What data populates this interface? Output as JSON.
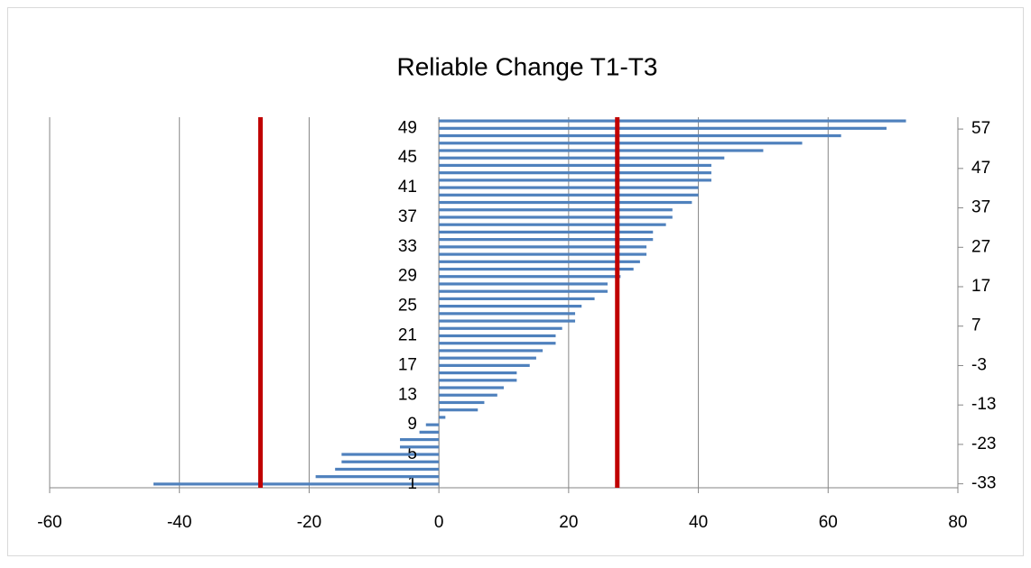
{
  "chart_data": {
    "type": "bar",
    "orientation": "horizontal",
    "title": "Reliable Change T1-T3",
    "categories": [
      1,
      null,
      null,
      null,
      5,
      null,
      null,
      null,
      9,
      null,
      null,
      null,
      13,
      null,
      null,
      null,
      17,
      null,
      null,
      null,
      21,
      null,
      null,
      null,
      25,
      null,
      null,
      null,
      29,
      null,
      null,
      null,
      33,
      null,
      null,
      null,
      37,
      null,
      null,
      null,
      41,
      null,
      null,
      null,
      45,
      null,
      null,
      null,
      49,
      null
    ],
    "values": [
      -44,
      -19,
      -16,
      -15,
      -15,
      -6,
      -6,
      -3,
      -2,
      1,
      6,
      7,
      9,
      10,
      12,
      12,
      14,
      15,
      16,
      18,
      18,
      19,
      21,
      21,
      22,
      24,
      26,
      26,
      28,
      30,
      31,
      32,
      32,
      33,
      33,
      35,
      36,
      36,
      39,
      40,
      40,
      42,
      42,
      42,
      44,
      50,
      56,
      62,
      69,
      72
    ],
    "color": "#4f81bd",
    "xlim": [
      -60,
      80
    ],
    "xticks": [
      -60,
      -40,
      -20,
      0,
      20,
      40,
      60,
      80
    ],
    "grid": true,
    "y2lim": [
      -34,
      60
    ],
    "y2ticks": [
      -33,
      -23,
      -13,
      -3,
      7,
      17,
      27,
      37,
      47,
      57
    ],
    "reference_lines": [
      {
        "x": -27.5,
        "color": "#c00000"
      },
      {
        "x": 27.5,
        "color": "#c00000"
      }
    ]
  }
}
